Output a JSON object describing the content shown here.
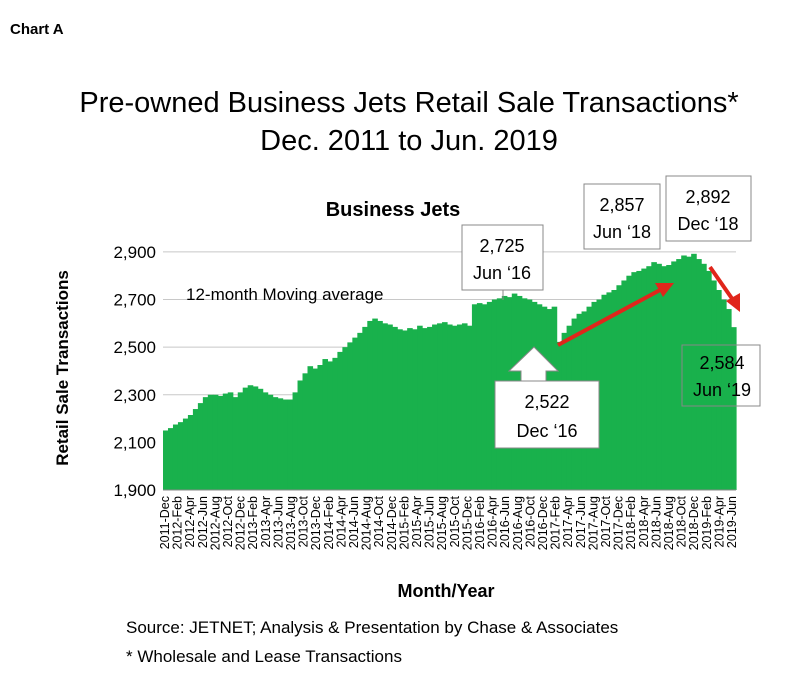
{
  "chart_label": "Chart A",
  "chart_data": {
    "type": "area",
    "title_line1": "Pre-owned Business Jets Retail Sale Transactions*",
    "title_line2": "Dec. 2011 to Jun. 2019",
    "subtitle": "Business Jets",
    "xlabel": "Month/Year",
    "ylabel": "Retail Sale Transactions",
    "ylim": [
      1900,
      2950
    ],
    "yticks": [
      "1,900",
      "2,100",
      "2,300",
      "2,500",
      "2,700",
      "2,900"
    ],
    "ytick_values": [
      1900,
      2100,
      2300,
      2500,
      2700,
      2900
    ],
    "grid": true,
    "color": "#19b14c",
    "x_tick_labels": [
      "2011-Dec",
      "2012-Feb",
      "2012-Apr",
      "2012-Jun",
      "2012-Aug",
      "2012-Oct",
      "2012-Dec",
      "2013-Feb",
      "2013-Apr",
      "2013-Jun",
      "2013-Aug",
      "2013-Oct",
      "2013-Dec",
      "2014-Feb",
      "2014-Apr",
      "2014-Jun",
      "2014-Aug",
      "2014-Oct",
      "2014-Dec",
      "2015-Feb",
      "2015-Apr",
      "2015-Jun",
      "2015-Aug",
      "2015-Oct",
      "2015-Dec",
      "2016-Feb",
      "2016-Apr",
      "2016-Jun",
      "2016-Aug",
      "2016-Oct",
      "2016-Dec",
      "2017-Feb",
      "2017-Apr",
      "2017-Jun",
      "2017-Aug",
      "2017-Oct",
      "2017-Dec",
      "2018-Feb",
      "2018-Apr",
      "2018-Jun",
      "2018-Aug",
      "2018-Oct",
      "2018-Dec",
      "2019-Feb",
      "2019-Apr",
      "2019-Jun"
    ],
    "values": [
      2150,
      2160,
      2175,
      2185,
      2200,
      2215,
      2240,
      2265,
      2290,
      2300,
      2300,
      2295,
      2305,
      2310,
      2290,
      2310,
      2330,
      2340,
      2335,
      2325,
      2310,
      2300,
      2290,
      2285,
      2280,
      2280,
      2310,
      2360,
      2390,
      2420,
      2410,
      2425,
      2450,
      2440,
      2455,
      2480,
      2500,
      2520,
      2540,
      2560,
      2585,
      2610,
      2620,
      2610,
      2600,
      2595,
      2585,
      2575,
      2570,
      2580,
      2575,
      2590,
      2580,
      2585,
      2595,
      2600,
      2605,
      2595,
      2590,
      2595,
      2600,
      2590,
      2680,
      2685,
      2680,
      2690,
      2700,
      2705,
      2715,
      2710,
      2725,
      2715,
      2705,
      2700,
      2690,
      2680,
      2670,
      2660,
      2670,
      2522,
      2560,
      2590,
      2620,
      2640,
      2650,
      2670,
      2690,
      2700,
      2720,
      2730,
      2740,
      2760,
      2780,
      2800,
      2815,
      2820,
      2830,
      2840,
      2857,
      2850,
      2840,
      2845,
      2860,
      2870,
      2885,
      2880,
      2892,
      2870,
      2850,
      2820,
      2780,
      2740,
      2700,
      2660,
      2584
    ],
    "moving_average_label": "12-month Moving average",
    "annotations": [
      {
        "value": "2,725",
        "date": "Jun ‘16"
      },
      {
        "value": "2,857",
        "date": "Jun ‘18"
      },
      {
        "value": "2,892",
        "date": "Dec ‘18"
      },
      {
        "value": "2,522",
        "date": "Dec ‘16"
      },
      {
        "value": "2,584",
        "date": "Jun ‘19"
      }
    ],
    "source_line": "Source: JETNET; Analysis & Presentation by Chase & Associates",
    "footnote": "* Wholesale and Lease Transactions"
  }
}
